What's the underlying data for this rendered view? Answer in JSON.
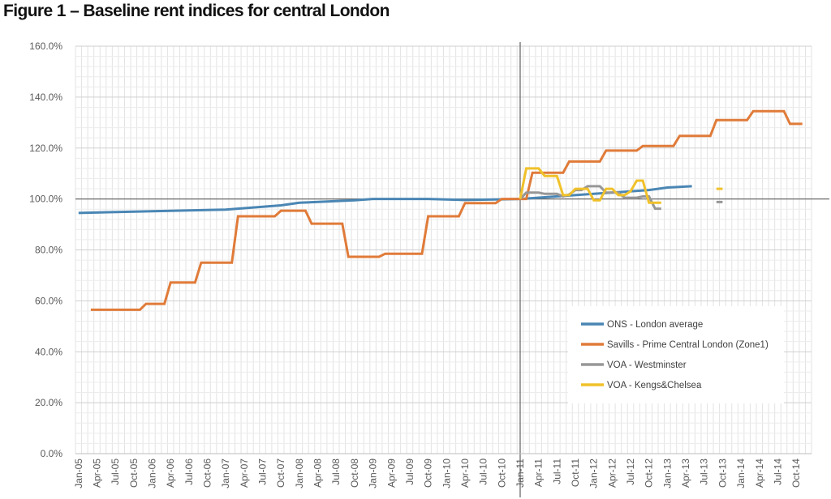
{
  "chart_data": {
    "type": "line",
    "title": "Figure 1 – Baseline rent indices for central London",
    "xlabel": "",
    "ylabel": "",
    "ylim": [
      0,
      160
    ],
    "y_ticks": [
      0,
      20,
      40,
      60,
      80,
      100,
      120,
      140,
      160
    ],
    "y_tick_labels": [
      "0.0%",
      "20.0%",
      "40.0%",
      "60.0%",
      "80.0%",
      "100.0%",
      "120.0%",
      "140.0%",
      "160.0%"
    ],
    "x_tick_labels": [
      "Jan-05",
      "Apr-05",
      "Jul-05",
      "Oct-05",
      "Jan-06",
      "Apr-06",
      "Jul-06",
      "Oct-06",
      "Jan-07",
      "Apr-07",
      "Jul-07",
      "Oct-07",
      "Jan-08",
      "Apr-08",
      "Jul-08",
      "Oct-08",
      "Jan-09",
      "Apr-09",
      "Jul-09",
      "Oct-09",
      "Jan-10",
      "Apr-10",
      "Jul-10",
      "Oct-10",
      "Jan-11",
      "Apr-11",
      "Jul-11",
      "Oct-11",
      "Jan-12",
      "Apr-12",
      "Jul-12",
      "Oct-12",
      "Jan-13",
      "Apr-13",
      "Jul-13",
      "Oct-13",
      "Jan-14",
      "Apr-14",
      "Jul-14",
      "Oct-14"
    ],
    "x_unit": "month",
    "x_start": "Jan-05",
    "reference_lines": {
      "horizontal_y": 100,
      "vertical_x": "Jan-11"
    },
    "grid": true,
    "legend_position": "bottom-right",
    "series": [
      {
        "name": "ONS - London average",
        "color": "#4a86b4",
        "points": [
          [
            "Jan-05",
            94.5
          ],
          [
            "Jan-06",
            95.2
          ],
          [
            "Jan-07",
            95.8
          ],
          [
            "Oct-07",
            97.5
          ],
          [
            "Jan-08",
            98.5
          ],
          [
            "Oct-08",
            99.5
          ],
          [
            "Jan-09",
            100
          ],
          [
            "Oct-09",
            100
          ],
          [
            "Apr-10",
            99.6
          ],
          [
            "Jan-11",
            100
          ],
          [
            "Jan-12",
            102
          ],
          [
            "Oct-12",
            103.5
          ],
          [
            "Jan-13",
            104.5
          ],
          [
            "May-13",
            105
          ]
        ]
      },
      {
        "name": "Savills - Prime Central London (Zone1)",
        "color": "#e07b39",
        "points": [
          [
            "Mar-05",
            56.5
          ],
          [
            "Nov-05",
            56.5
          ],
          [
            "Dec-05",
            58.8
          ],
          [
            "Mar-06",
            58.8
          ],
          [
            "Apr-06",
            67.2
          ],
          [
            "Aug-06",
            67.2
          ],
          [
            "Sep-06",
            75
          ],
          [
            "Feb-07",
            75
          ],
          [
            "Mar-07",
            93.2
          ],
          [
            "Sep-07",
            93.2
          ],
          [
            "Oct-07",
            95.4
          ],
          [
            "Feb-08",
            95.4
          ],
          [
            "Mar-08",
            90.3
          ],
          [
            "Aug-08",
            90.3
          ],
          [
            "Sep-08",
            77.3
          ],
          [
            "Feb-09",
            77.3
          ],
          [
            "Mar-09",
            78.5
          ],
          [
            "Sep-09",
            78.5
          ],
          [
            "Oct-09",
            93.2
          ],
          [
            "Mar-10",
            93.2
          ],
          [
            "Apr-10",
            98.4
          ],
          [
            "Sep-10",
            98.4
          ],
          [
            "Oct-10",
            100
          ],
          [
            "Feb-11",
            100
          ],
          [
            "Mar-11",
            110.3
          ],
          [
            "Aug-11",
            110.3
          ],
          [
            "Sep-11",
            114.7
          ],
          [
            "Feb-12",
            114.7
          ],
          [
            "Mar-12",
            119
          ],
          [
            "Aug-12",
            119
          ],
          [
            "Sep-12",
            120.8
          ],
          [
            "Feb-13",
            120.8
          ],
          [
            "Mar-13",
            124.8
          ],
          [
            "Aug-13",
            124.8
          ],
          [
            "Sep-13",
            131
          ],
          [
            "Feb-14",
            131
          ],
          [
            "Mar-14",
            134.5
          ],
          [
            "Aug-14",
            134.5
          ],
          [
            "Sep-14",
            129.5
          ],
          [
            "Nov-14",
            129.5
          ]
        ]
      },
      {
        "name": "VOA - Westminster",
        "color": "#979797",
        "segments": [
          [
            [
              "Jan-11",
              100
            ],
            [
              "Feb-11",
              102.5
            ],
            [
              "Apr-11",
              102.5
            ],
            [
              "May-11",
              102
            ],
            [
              "Jul-11",
              102
            ],
            [
              "Aug-11",
              101
            ],
            [
              "Sep-11",
              101.8
            ],
            [
              "Oct-11",
              103.5
            ],
            [
              "Nov-11",
              103.5
            ],
            [
              "Dec-11",
              105
            ],
            [
              "Feb-12",
              105
            ],
            [
              "Mar-12",
              102.5
            ],
            [
              "May-12",
              102.5
            ],
            [
              "Jun-12",
              100.5
            ],
            [
              "Aug-12",
              100.5
            ],
            [
              "Sep-12",
              101
            ],
            [
              "Oct-12",
              101
            ],
            [
              "Nov-12",
              96.2
            ],
            [
              "Dec-12",
              96.2
            ]
          ],
          [
            [
              "Sep-13",
              98.8
            ],
            [
              "Oct-13",
              98.8
            ]
          ]
        ]
      },
      {
        "name": "VOA - Kengs&Chelsea",
        "color": "#f0c12a",
        "segments": [
          [
            [
              "Jan-11",
              100
            ],
            [
              "Feb-11",
              112
            ],
            [
              "Apr-11",
              112
            ],
            [
              "May-11",
              109
            ],
            [
              "Jul-11",
              109
            ],
            [
              "Aug-11",
              101.5
            ],
            [
              "Sep-11",
              101.5
            ],
            [
              "Oct-11",
              104
            ],
            [
              "Dec-11",
              104
            ],
            [
              "Jan-12",
              99.5
            ],
            [
              "Feb-12",
              99.5
            ],
            [
              "Mar-12",
              104
            ],
            [
              "Apr-12",
              104
            ],
            [
              "May-12",
              101.5
            ],
            [
              "Jun-12",
              101.5
            ],
            [
              "Jul-12",
              103
            ],
            [
              "Aug-12",
              107.2
            ],
            [
              "Sep-12",
              107.2
            ],
            [
              "Oct-12",
              98.5
            ],
            [
              "Dec-12",
              98.5
            ]
          ],
          [
            [
              "Sep-13",
              104
            ],
            [
              "Oct-13",
              104
            ]
          ]
        ]
      }
    ]
  }
}
